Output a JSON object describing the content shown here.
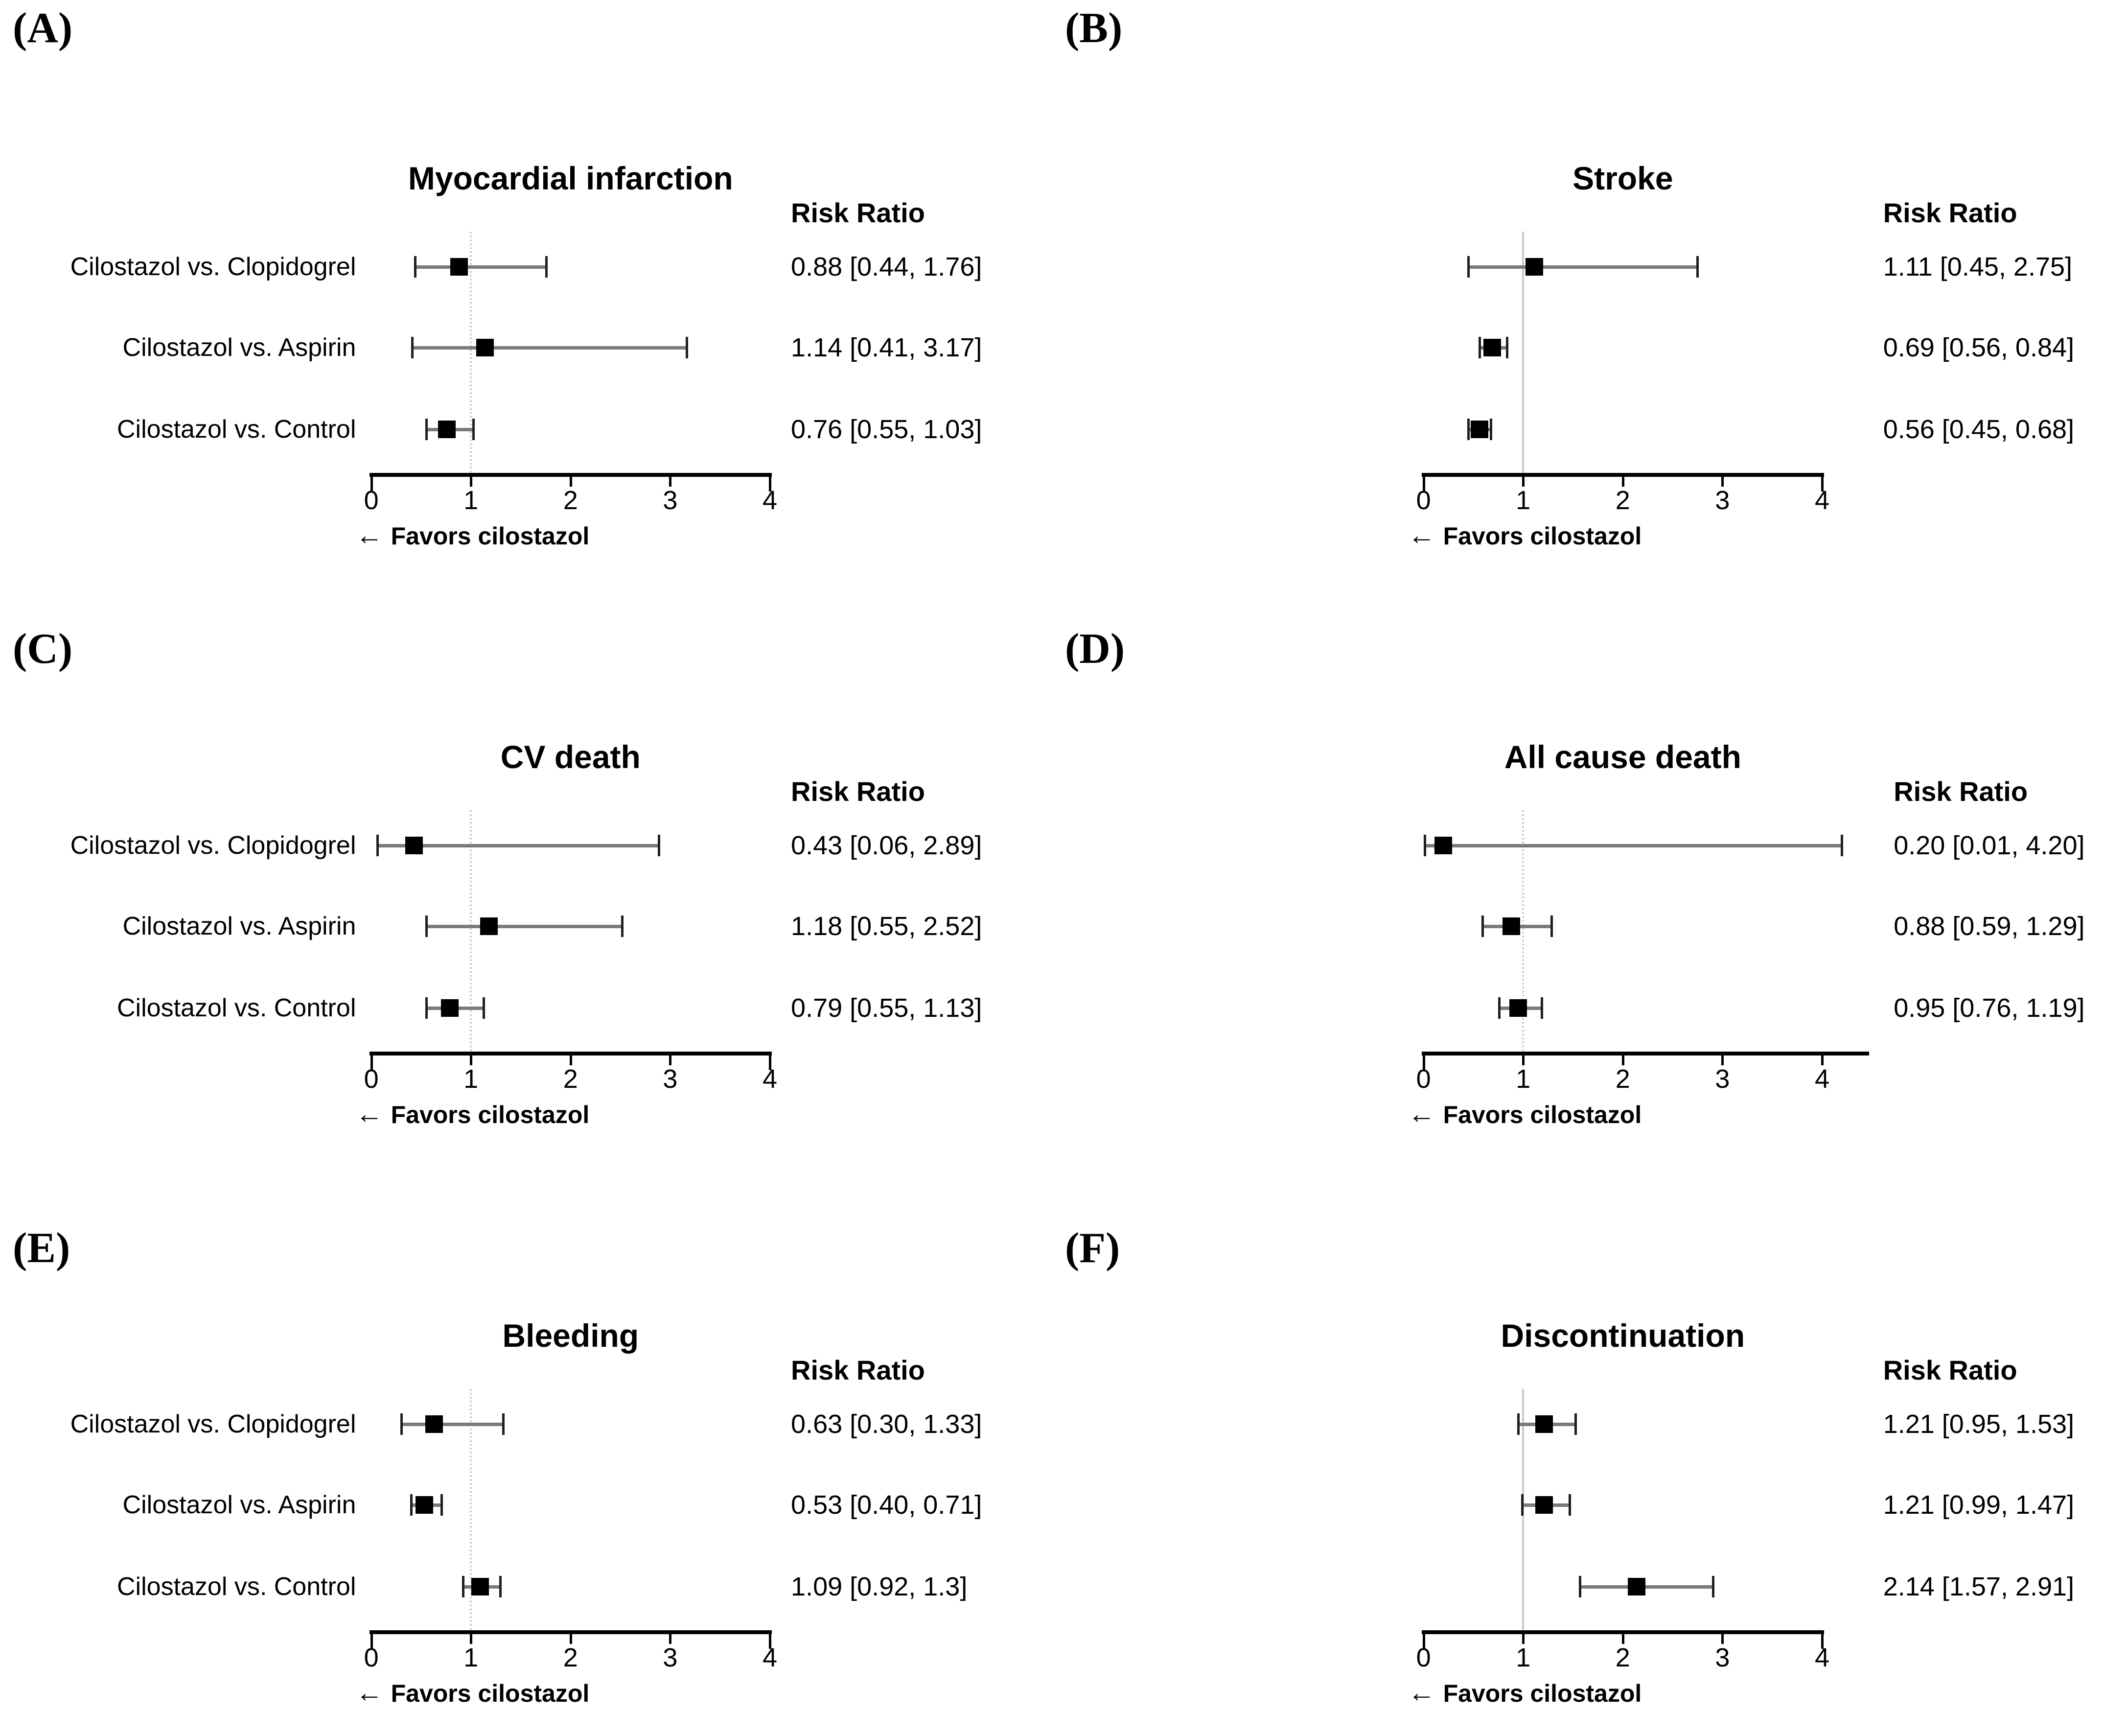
{
  "figure_type": "forest-plot-grid",
  "colors": {
    "background": "#ffffff",
    "text": "#000000",
    "marker": "#000000",
    "ci_line": "#7a7a7a",
    "ci_cap": "#1f1f1f",
    "axis": "#000000",
    "reference_line": "#c9c9c9"
  },
  "chart_data": [
    {
      "type": "scatter",
      "subtype": "forest-plot",
      "panel_label": "(A)",
      "title": "Myocardial infarction",
      "column_header": "Risk Ratio",
      "footer_arrow": "←",
      "footer_text": "Favors cilostazol",
      "xlim": [
        0,
        4
      ],
      "xticks": [
        0,
        1,
        2,
        3,
        4
      ],
      "axis_line_end": 4,
      "reference_line_x": 1,
      "legend": "none",
      "grid": "off",
      "rows": [
        {
          "label": "Cilostazol vs. Clopidogrel",
          "estimate": 0.88,
          "ci_low": 0.44,
          "ci_high": 1.76,
          "value_text": "0.88 [0.44, 1.76]"
        },
        {
          "label": "Cilostazol vs. Aspirin",
          "estimate": 1.14,
          "ci_low": 0.41,
          "ci_high": 3.17,
          "value_text": "1.14 [0.41, 3.17]"
        },
        {
          "label": "Cilostazol vs. Control",
          "estimate": 0.76,
          "ci_low": 0.55,
          "ci_high": 1.03,
          "value_text": "0.76 [0.55, 1.03]"
        }
      ]
    },
    {
      "type": "scatter",
      "subtype": "forest-plot",
      "panel_label": "(B)",
      "title": "Stroke",
      "column_header": "Risk Ratio",
      "footer_arrow": "←",
      "footer_text": "Favors cilostazol",
      "xlim": [
        0,
        4
      ],
      "xticks": [
        0,
        1,
        2,
        3,
        4
      ],
      "axis_line_end": 4,
      "reference_line_x": 1,
      "legend": "none",
      "grid": "off",
      "rows": [
        {
          "label": "Cilostazol vs. Clopidogrel",
          "estimate": 1.11,
          "ci_low": 0.45,
          "ci_high": 2.75,
          "value_text": "1.11 [0.45, 2.75]"
        },
        {
          "label": "Cilostazol vs. Aspirin",
          "estimate": 0.69,
          "ci_low": 0.56,
          "ci_high": 0.84,
          "value_text": "0.69 [0.56, 0.84]"
        },
        {
          "label": "Cilostazol vs. Control",
          "estimate": 0.56,
          "ci_low": 0.45,
          "ci_high": 0.68,
          "value_text": "0.56 [0.45, 0.68]"
        }
      ]
    },
    {
      "type": "scatter",
      "subtype": "forest-plot",
      "panel_label": "(C)",
      "title": "CV death",
      "column_header": "Risk Ratio",
      "footer_arrow": "←",
      "footer_text": "Favors cilostazol",
      "xlim": [
        0,
        4
      ],
      "xticks": [
        0,
        1,
        2,
        3,
        4
      ],
      "axis_line_end": 4,
      "reference_line_x": 1,
      "legend": "none",
      "grid": "off",
      "rows": [
        {
          "label": "Cilostazol vs. Clopidogrel",
          "estimate": 0.43,
          "ci_low": 0.06,
          "ci_high": 2.89,
          "value_text": "0.43 [0.06, 2.89]"
        },
        {
          "label": "Cilostazol vs. Aspirin",
          "estimate": 1.18,
          "ci_low": 0.55,
          "ci_high": 2.52,
          "value_text": "1.18 [0.55, 2.52]"
        },
        {
          "label": "Cilostazol vs. Control",
          "estimate": 0.79,
          "ci_low": 0.55,
          "ci_high": 1.13,
          "value_text": "0.79 [0.55, 1.13]"
        }
      ]
    },
    {
      "type": "scatter",
      "subtype": "forest-plot",
      "panel_label": "(D)",
      "title": "All cause death",
      "column_header": "Risk Ratio",
      "footer_arrow": "←",
      "footer_text": "Favors cilostazol",
      "xlim": [
        0,
        4
      ],
      "xticks": [
        0,
        1,
        2,
        3,
        4
      ],
      "axis_line_end": 4.45,
      "reference_line_x": 1,
      "legend": "none",
      "grid": "off",
      "rows": [
        {
          "label": "Cilostazol vs. Clopidogrel",
          "estimate": 0.2,
          "ci_low": 0.01,
          "ci_high": 4.2,
          "value_text": "0.20 [0.01, 4.20]"
        },
        {
          "label": "Cilostazol vs. Aspirin",
          "estimate": 0.88,
          "ci_low": 0.59,
          "ci_high": 1.29,
          "value_text": "0.88 [0.59, 1.29]"
        },
        {
          "label": "Cilostazol vs. Control",
          "estimate": 0.95,
          "ci_low": 0.76,
          "ci_high": 1.19,
          "value_text": "0.95 [0.76, 1.19]"
        }
      ]
    },
    {
      "type": "scatter",
      "subtype": "forest-plot",
      "panel_label": "(E)",
      "title": "Bleeding",
      "column_header": "Risk Ratio",
      "footer_arrow": "←",
      "footer_text": "Favors cilostazol",
      "xlim": [
        0,
        4
      ],
      "xticks": [
        0,
        1,
        2,
        3,
        4
      ],
      "axis_line_end": 4,
      "reference_line_x": 1,
      "legend": "none",
      "grid": "off",
      "rows": [
        {
          "label": "Cilostazol vs. Clopidogrel",
          "estimate": 0.63,
          "ci_low": 0.3,
          "ci_high": 1.33,
          "value_text": "0.63 [0.30, 1.33]"
        },
        {
          "label": "Cilostazol vs. Aspirin",
          "estimate": 0.53,
          "ci_low": 0.4,
          "ci_high": 0.71,
          "value_text": "0.53 [0.40, 0.71]"
        },
        {
          "label": "Cilostazol vs. Control",
          "estimate": 1.09,
          "ci_low": 0.92,
          "ci_high": 1.3,
          "value_text": "1.09 [0.92, 1.3]"
        }
      ]
    },
    {
      "type": "scatter",
      "subtype": "forest-plot",
      "panel_label": "(F)",
      "title": "Discontinuation",
      "column_header": "Risk Ratio",
      "footer_arrow": "←",
      "footer_text": "Favors cilostazol",
      "xlim": [
        0,
        4
      ],
      "xticks": [
        0,
        1,
        2,
        3,
        4
      ],
      "axis_line_end": 4,
      "reference_line_x": 1,
      "legend": "none",
      "grid": "off",
      "rows": [
        {
          "label": "Cilostazol vs. Clopidogrel",
          "estimate": 1.21,
          "ci_low": 0.95,
          "ci_high": 1.53,
          "value_text": "1.21 [0.95, 1.53]"
        },
        {
          "label": "Cilostazol vs. Aspirin",
          "estimate": 1.21,
          "ci_low": 0.99,
          "ci_high": 1.47,
          "value_text": "1.21 [0.99, 1.47]"
        },
        {
          "label": "Cilostazol vs. Control",
          "estimate": 2.14,
          "ci_low": 1.57,
          "ci_high": 2.91,
          "value_text": "2.14 [1.57, 2.91]"
        }
      ]
    }
  ]
}
